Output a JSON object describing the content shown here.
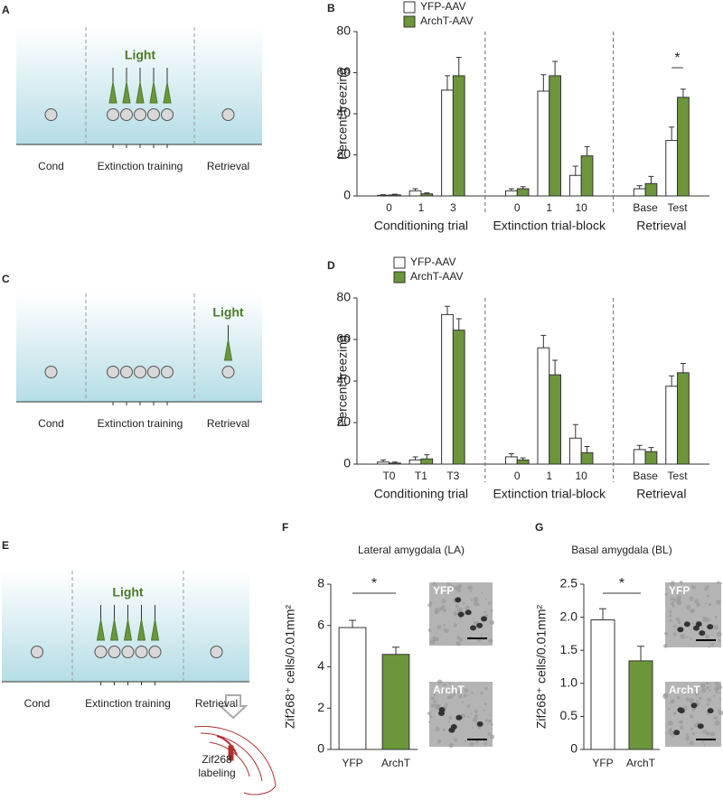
{
  "panel_letters": [
    "A",
    "B",
    "C",
    "D",
    "E",
    "F",
    "G"
  ],
  "schematics": [
    {
      "stages": [
        {
          "label": "Cond"
        },
        {
          "label": "Extinction training",
          "light": "Light"
        },
        {
          "label": "Retrieval"
        }
      ]
    },
    {
      "stages": [
        {
          "label": "Cond"
        },
        {
          "label": "Extinction training"
        },
        {
          "label": "Retrieval",
          "light": "Light"
        }
      ]
    },
    {
      "stages": [
        {
          "label": "Cond"
        },
        {
          "label": "Extinction training",
          "light": "Light"
        },
        {
          "label": "Retrieval"
        }
      ]
    }
  ],
  "brain_label": [
    "Zif268",
    "labeling"
  ],
  "micrographs": [
    {
      "labels": [
        "YFP",
        "ArchT"
      ]
    },
    {
      "labels": [
        "YFP",
        "ArchT"
      ]
    }
  ],
  "chart_data": [
    {
      "type": "grouped_bar",
      "ylabel": "Percent freezing",
      "groups": [
        {
          "label": "Conditioning trial",
          "categories": [
            "0",
            "1",
            "3"
          ]
        },
        {
          "label": "Extinction trial-block",
          "categories": [
            "0",
            "1",
            "10"
          ]
        },
        {
          "label": "Retrieval",
          "categories": [
            "Base",
            "Test"
          ]
        }
      ],
      "series": [
        {
          "name": "YFP-AAV",
          "color": "#ffffff",
          "values": [
            0.3,
            2.5,
            51.5,
            2.5,
            51,
            10,
            3.5,
            27
          ],
          "errors": [
            0.3,
            1,
            7,
            1,
            8,
            4.5,
            1.5,
            6.5
          ]
        },
        {
          "name": "ArchT-AAV",
          "color": "#6b973a",
          "values": [
            0.5,
            1,
            58.5,
            3.5,
            58.5,
            19.5,
            6,
            48
          ],
          "errors": [
            0.3,
            0.5,
            9,
            1,
            7,
            4.5,
            3.5,
            4
          ]
        }
      ],
      "significance": "*",
      "ylim": [
        0,
        80
      ],
      "yticks": [
        0,
        20,
        40,
        60,
        80
      ],
      "grid": false,
      "legend": "top"
    },
    {
      "type": "grouped_bar",
      "ylabel": "Percent freezing",
      "groups": [
        {
          "label": "Conditioning trial",
          "categories": [
            "T0",
            "T1",
            "T3"
          ]
        },
        {
          "label": "Extinction trial-block",
          "categories": [
            "0",
            "1",
            "10"
          ]
        },
        {
          "label": "Retrieval",
          "categories": [
            "Base",
            "Test"
          ]
        }
      ],
      "series": [
        {
          "name": "YFP-AAV",
          "color": "#ffffff",
          "values": [
            1,
            2,
            72,
            3.5,
            56,
            12.5,
            7,
            37.5
          ],
          "errors": [
            1,
            1.5,
            4,
            1.5,
            6,
            6.5,
            2,
            5
          ]
        },
        {
          "name": "ArchT-AAV",
          "color": "#6b973a",
          "values": [
            0.5,
            2.5,
            64.5,
            2,
            43,
            5.5,
            6,
            44
          ],
          "errors": [
            0.5,
            2,
            5.5,
            1,
            7,
            3,
            2,
            4.5
          ]
        }
      ],
      "ylim": [
        0,
        80
      ],
      "yticks": [
        0,
        20,
        40,
        60,
        80
      ],
      "grid": false,
      "legend": "top"
    },
    {
      "type": "bar",
      "title": "Lateral amygdala (LA)",
      "ylabel": "Zif268⁺ cells/0.01mm²",
      "categories": [
        "YFP",
        "ArchT"
      ],
      "values": [
        5.9,
        4.6
      ],
      "errors": [
        0.35,
        0.35
      ],
      "colors": [
        "#ffffff",
        "#6b973a"
      ],
      "significance": "*",
      "ylim": [
        0,
        8
      ],
      "yticks": [
        0,
        2,
        4,
        6,
        8
      ],
      "grid": false
    },
    {
      "type": "bar",
      "title": "Basal amygdala (BL)",
      "ylabel": "Zif268⁺ cells/0.01mm²",
      "categories": [
        "YFP",
        "ArchT"
      ],
      "values": [
        1.96,
        1.34
      ],
      "errors": [
        0.17,
        0.22
      ],
      "colors": [
        "#ffffff",
        "#6b973a"
      ],
      "significance": "*",
      "ylim": [
        0,
        2.5
      ],
      "yticks": [
        0,
        0.5,
        {
          "value": 1,
          "label": "1.0"
        },
        1.5,
        {
          "value": 2,
          "label": "2.0"
        },
        2.5
      ],
      "grid": false
    }
  ]
}
